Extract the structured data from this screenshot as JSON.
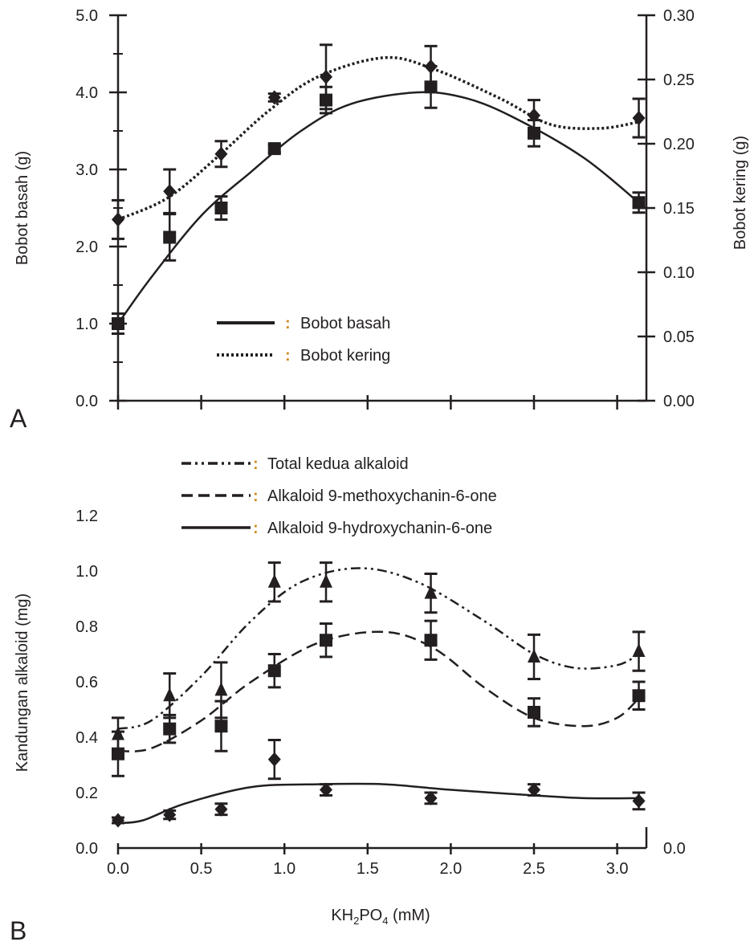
{
  "chart_data": [
    {
      "panel_label": "A",
      "type": "scatter",
      "x": [
        0.0,
        0.31,
        0.62,
        0.94,
        1.25,
        1.88,
        2.5,
        3.13
      ],
      "xlim": [
        0,
        3.2
      ],
      "ylabel": "Bobot basah (g)",
      "ylim": [
        0,
        5
      ],
      "yticks": [
        "0.0",
        "1.0",
        "2.0",
        "3.0",
        "4.0",
        "5.0"
      ],
      "y2label": "Bobot kering (g)",
      "y2lim": [
        0,
        0.3
      ],
      "y2ticks": [
        "0.00",
        "0.05",
        "0.10",
        "0.15",
        "0.20",
        "0.25",
        "0.30"
      ],
      "grid": false,
      "legend_position": "center-bottom",
      "series": [
        {
          "name": "Bobot basah",
          "axis": "left",
          "marker": "square",
          "line": "solid",
          "values": [
            1.0,
            2.12,
            2.5,
            3.27,
            3.9,
            4.07,
            3.47,
            2.57
          ],
          "errors": [
            0.13,
            0.3,
            0.15,
            0.05,
            0.17,
            0.27,
            0.17,
            0.13
          ],
          "fit": [
            [
              0,
              1.0
            ],
            [
              0.2,
              1.6
            ],
            [
              0.5,
              2.4
            ],
            [
              0.8,
              2.97
            ],
            [
              1.1,
              3.5
            ],
            [
              1.4,
              3.85
            ],
            [
              1.8,
              4.0
            ],
            [
              2.1,
              3.92
            ],
            [
              2.4,
              3.65
            ],
            [
              2.8,
              3.15
            ],
            [
              3.13,
              2.57
            ]
          ]
        },
        {
          "name": "Bobot kering",
          "axis": "right",
          "marker": "diamond",
          "line": "dotted",
          "values": [
            0.141,
            0.163,
            0.192,
            0.236,
            0.252,
            0.26,
            0.222,
            0.22
          ],
          "errors": [
            0.015,
            0.017,
            0.01,
            0.003,
            0.025,
            0.016,
            0.012,
            0.015
          ],
          "fit": [
            [
              0,
              0.141
            ],
            [
              0.3,
              0.158
            ],
            [
              0.6,
              0.19
            ],
            [
              0.9,
              0.225
            ],
            [
              1.2,
              0.252
            ],
            [
              1.6,
              0.267
            ],
            [
              1.9,
              0.258
            ],
            [
              2.3,
              0.235
            ],
            [
              2.6,
              0.215
            ],
            [
              2.9,
              0.212
            ],
            [
              3.13,
              0.217
            ]
          ]
        }
      ]
    },
    {
      "panel_label": "B",
      "type": "scatter",
      "x": [
        0.0,
        0.31,
        0.62,
        0.94,
        1.25,
        1.88,
        2.5,
        3.13
      ],
      "xlabel_parts": [
        "KH",
        "2",
        "PO",
        "4",
        " (mM)"
      ],
      "xticks": [
        "0.0",
        "0.5",
        "1.0",
        "1.5",
        "2.0",
        "2.5",
        "3.0"
      ],
      "xlim": [
        0,
        3.2
      ],
      "ylabel": "Kandungan alkaloid (mg)",
      "ylim": [
        0,
        1.2
      ],
      "yticks": [
        "0.0",
        "0.2",
        "0.4",
        "0.6",
        "0.8",
        "1.0",
        "1.2"
      ],
      "y2ticks": [
        "0.0"
      ],
      "grid": false,
      "legend_position": "top",
      "series": [
        {
          "name": "Total kedua alkaloid",
          "marker": "triangle",
          "line": "dash-dot-dot",
          "values": [
            0.41,
            0.55,
            0.57,
            0.96,
            0.96,
            0.92,
            0.69,
            0.71
          ],
          "errors": [
            0.06,
            0.08,
            0.1,
            0.07,
            0.07,
            0.07,
            0.08,
            0.07
          ],
          "fit": [
            [
              0,
              0.43
            ],
            [
              0.2,
              0.46
            ],
            [
              0.5,
              0.62
            ],
            [
              0.8,
              0.82
            ],
            [
              1.1,
              0.96
            ],
            [
              1.45,
              1.01
            ],
            [
              1.8,
              0.96
            ],
            [
              2.2,
              0.82
            ],
            [
              2.5,
              0.7
            ],
            [
              2.75,
              0.65
            ],
            [
              3.0,
              0.66
            ],
            [
              3.13,
              0.7
            ]
          ]
        },
        {
          "name": "Alkaloid 9-methoxychanin-6-one",
          "marker": "square",
          "line": "dashed",
          "values": [
            0.34,
            0.43,
            0.44,
            0.64,
            0.75,
            0.75,
            0.49,
            0.55
          ],
          "errors": [
            0.08,
            0.05,
            0.09,
            0.06,
            0.06,
            0.07,
            0.05,
            0.05
          ],
          "fit": [
            [
              0,
              0.35
            ],
            [
              0.2,
              0.36
            ],
            [
              0.5,
              0.46
            ],
            [
              0.8,
              0.6
            ],
            [
              1.2,
              0.74
            ],
            [
              1.6,
              0.78
            ],
            [
              1.9,
              0.72
            ],
            [
              2.2,
              0.58
            ],
            [
              2.5,
              0.47
            ],
            [
              2.8,
              0.44
            ],
            [
              3.0,
              0.47
            ],
            [
              3.13,
              0.54
            ]
          ]
        },
        {
          "name": "Alkaloid 9-hydroxychanin-6-one",
          "marker": "diamond",
          "line": "solid",
          "values": [
            0.1,
            0.12,
            0.14,
            0.32,
            0.21,
            0.18,
            0.21,
            0.17
          ],
          "errors": [
            0.01,
            0.015,
            0.02,
            0.07,
            0.02,
            0.02,
            0.02,
            0.03
          ],
          "fit": [
            [
              0,
              0.09
            ],
            [
              0.15,
              0.1
            ],
            [
              0.4,
              0.16
            ],
            [
              0.8,
              0.22
            ],
            [
              1.2,
              0.23
            ],
            [
              1.6,
              0.23
            ],
            [
              2.0,
              0.21
            ],
            [
              2.5,
              0.19
            ],
            [
              2.8,
              0.18
            ],
            [
              3.13,
              0.18
            ]
          ]
        }
      ]
    }
  ]
}
